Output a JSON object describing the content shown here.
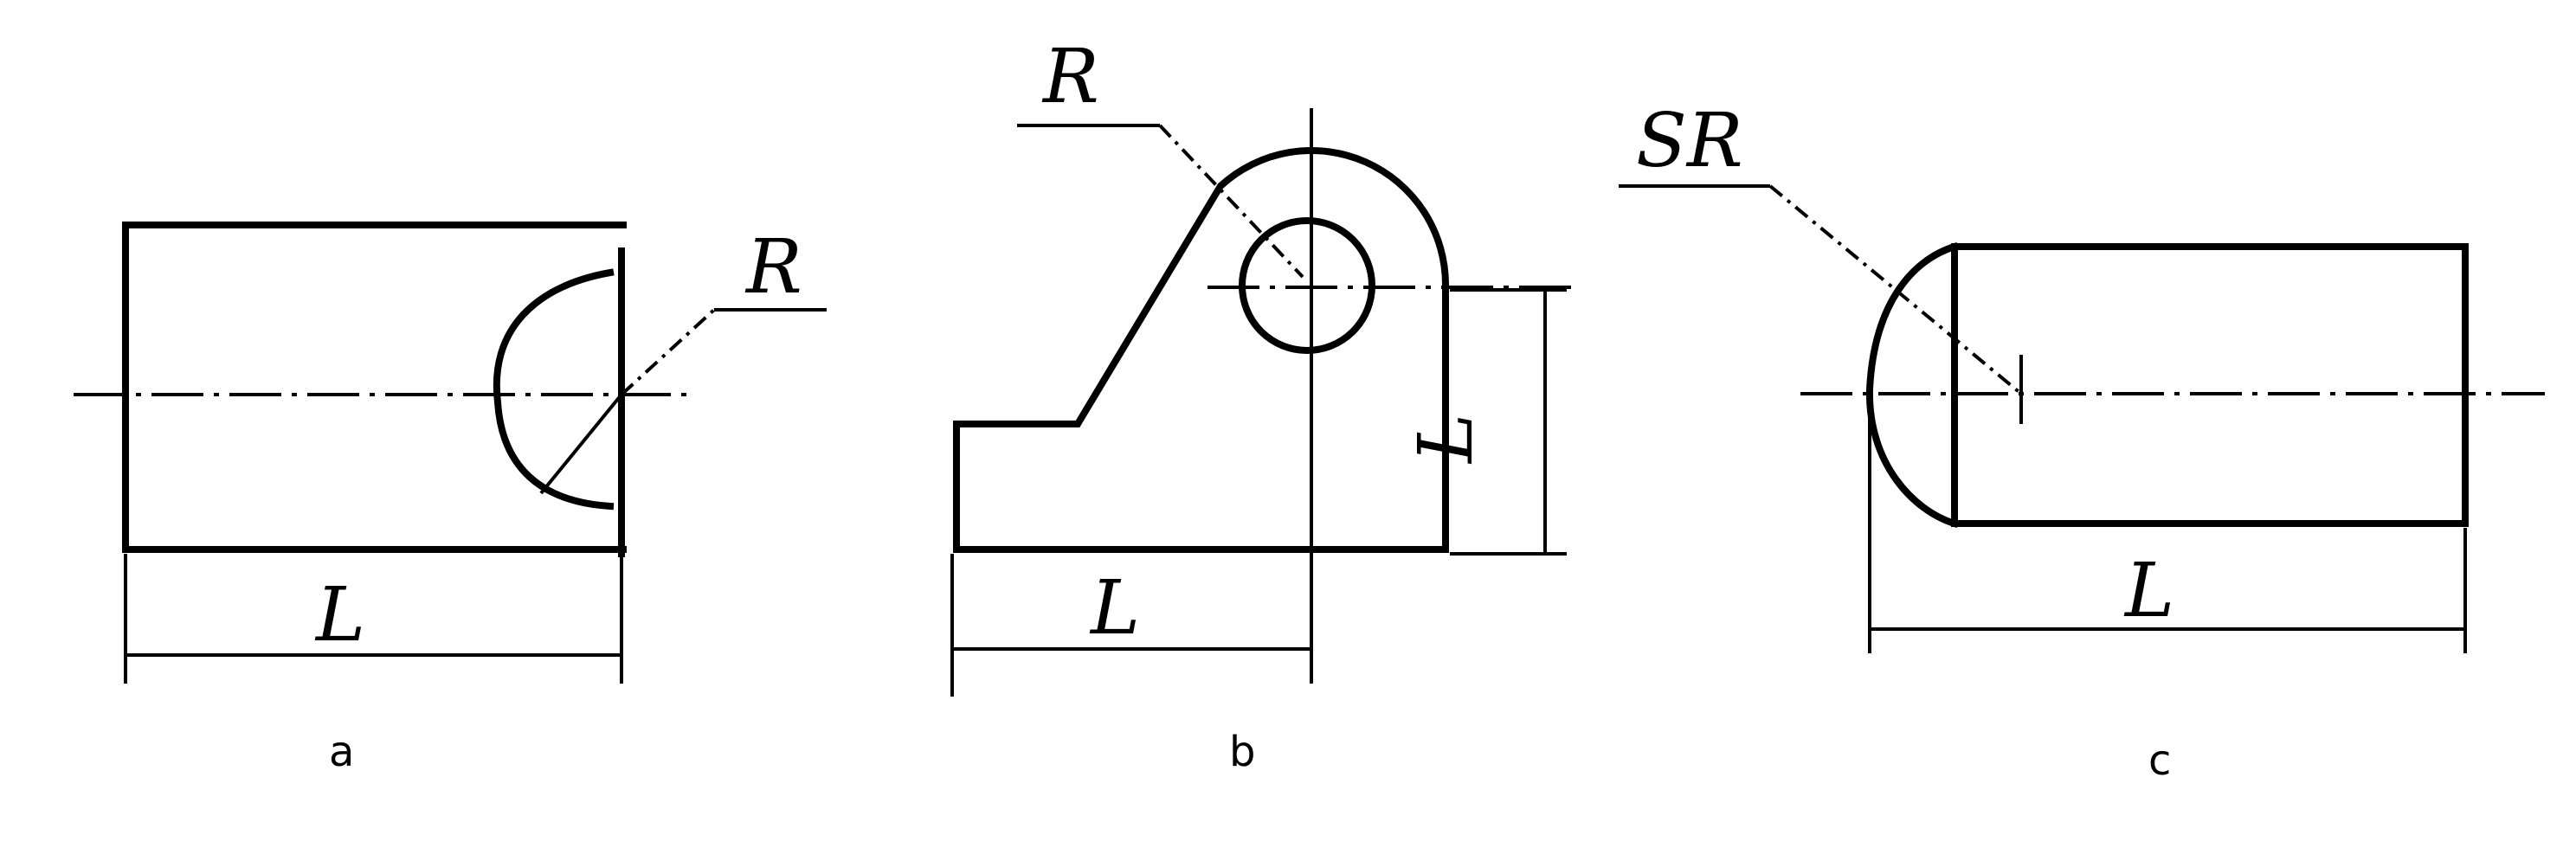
{
  "figures": [
    {
      "id": "a",
      "caption": "a",
      "radius_label": "R",
      "length_label": "L"
    },
    {
      "id": "b",
      "caption": "b",
      "radius_label": "R",
      "length_label_bottom": "L",
      "length_label_side": "L"
    },
    {
      "id": "c",
      "caption": "c",
      "radius_label": "SR",
      "length_label": "L"
    }
  ]
}
